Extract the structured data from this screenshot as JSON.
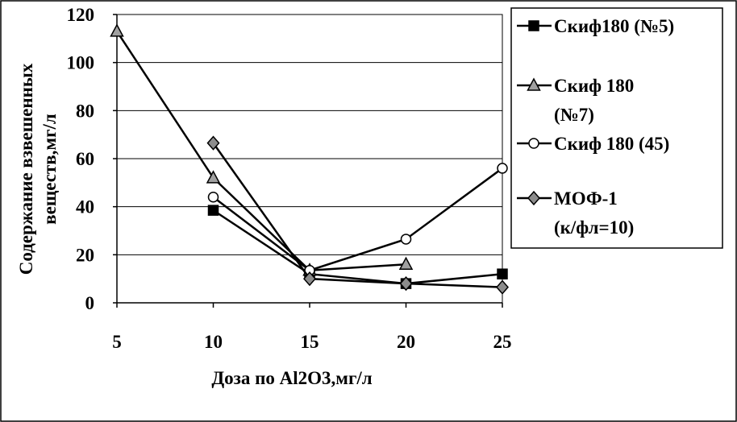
{
  "chart_data": {
    "type": "line",
    "title": "",
    "xlabel": "Доза по Al2O3,мг/л",
    "ylabel_lines": [
      "Содержание взвешенных",
      "веществ,мг/л"
    ],
    "x_ticks": [
      5,
      10,
      15,
      20,
      25
    ],
    "y_ticks": [
      0,
      20,
      40,
      60,
      80,
      100,
      120
    ],
    "xlim": [
      5,
      25
    ],
    "ylim": [
      0,
      120
    ],
    "grid": "horizontal",
    "legend_position": "right",
    "series": [
      {
        "name_lines": [
          "Скиф180 (№5)"
        ],
        "marker": "square",
        "marker_fill": "#000000",
        "points": [
          [
            10,
            38.5
          ],
          [
            15,
            12
          ],
          [
            20,
            8
          ],
          [
            25,
            12
          ]
        ]
      },
      {
        "name_lines": [
          "Скиф 180",
          "(№7)"
        ],
        "marker": "triangle",
        "marker_fill": "#a0a0a0",
        "points": [
          [
            5,
            113
          ],
          [
            10,
            52
          ],
          [
            15,
            13.5
          ],
          [
            20,
            16
          ]
        ]
      },
      {
        "name_lines": [
          "Скиф 180 (45)"
        ],
        "marker": "circle",
        "marker_fill": "#ffffff",
        "points": [
          [
            10,
            44
          ],
          [
            15,
            13.5
          ],
          [
            20,
            26.5
          ],
          [
            25,
            56
          ]
        ]
      },
      {
        "name_lines": [
          "МОФ-1",
          "(к/фл=10)"
        ],
        "marker": "diamond",
        "marker_fill": "#8c8c8c",
        "points": [
          [
            10,
            66.5
          ],
          [
            15,
            10
          ],
          [
            20,
            8
          ],
          [
            25,
            6.5
          ]
        ]
      }
    ]
  }
}
